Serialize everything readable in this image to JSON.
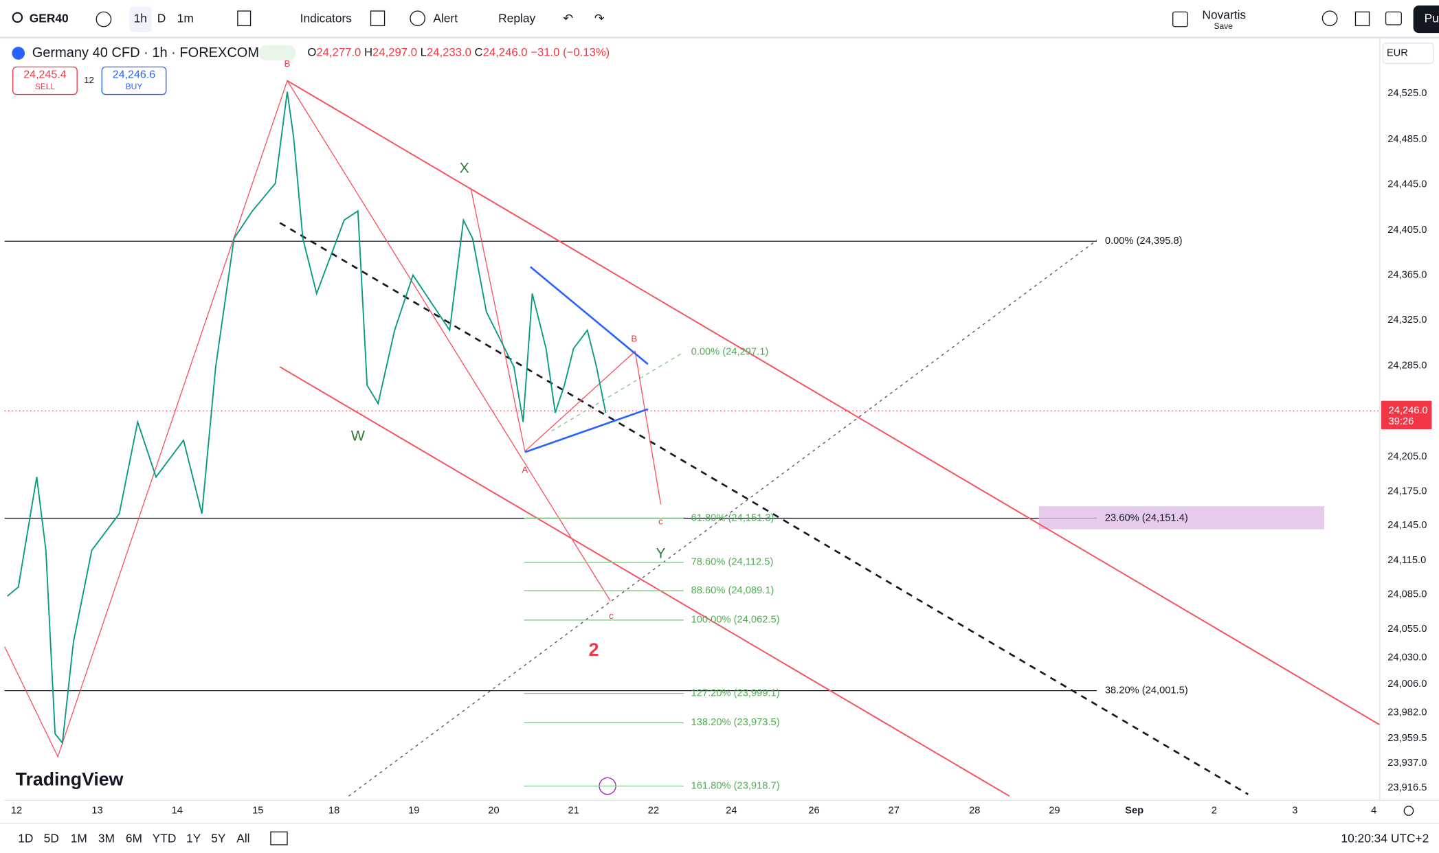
{
  "toolbar": {
    "symbol": "GER40",
    "interval": "1h",
    "day": "D",
    "minute": "1m",
    "indicators": "Indicators",
    "alert": "Alert",
    "replay": "Replay",
    "layout_name": "Novartis",
    "save": "Save",
    "publish": "Pu"
  },
  "legend": {
    "title": "Germany 40 CFD · 1h · FOREXCOM",
    "open_label": "O",
    "open": "24,277.0",
    "high_label": "H",
    "high": "24,297.0",
    "low_label": "L",
    "low": "24,233.0",
    "close_label": "C",
    "close": "24,246.0",
    "change": "−31.0 (−0.13%)"
  },
  "trade": {
    "sell_price": "24,245.4",
    "sell": "SELL",
    "spread": "12",
    "buy_price": "24,246.6",
    "buy": "BUY"
  },
  "currency": "EUR",
  "price_axis": [
    "24,525.0",
    "24,485.0",
    "24,445.0",
    "24,405.0",
    "24,365.0",
    "24,325.0",
    "24,285.0",
    "24,205.0",
    "24,175.0",
    "24,145.0",
    "24,115.0",
    "24,085.0",
    "24,055.0",
    "24,030.0",
    "24,006.0",
    "23,982.0",
    "23,959.5",
    "23,937.0",
    "23,916.5"
  ],
  "last_price": "24,246.0",
  "countdown": "39:26",
  "time_axis": [
    "12",
    "13",
    "14",
    "15",
    "18",
    "19",
    "20",
    "21",
    "22",
    "24",
    "26",
    "27",
    "28",
    "29",
    "Sep",
    "2",
    "3",
    "4"
  ],
  "fib_large": [
    "0.00% (24,395.8)",
    "23.60% (24,151.4)",
    "38.20% (24,001.5)"
  ],
  "fib_small": [
    "0.00% (24,297.1)",
    "61.80% (24,151.3)",
    "78.60% (24,112.5)",
    "88.60% (24,089.1)",
    "100.00% (24,062.5)",
    "127.20% (23,999.1)",
    "138.20% (23,973.5)",
    "161.80% (23,918.7)"
  ],
  "wave_labels": [
    "B",
    "X",
    "W",
    "A",
    "B",
    "c",
    "Y",
    "c",
    "2"
  ],
  "logo": "TradingView",
  "ranges": [
    "1D",
    "5D",
    "1M",
    "3M",
    "6M",
    "YTD",
    "1Y",
    "5Y",
    "All"
  ],
  "clock": "10:20:34 UTC+2"
}
